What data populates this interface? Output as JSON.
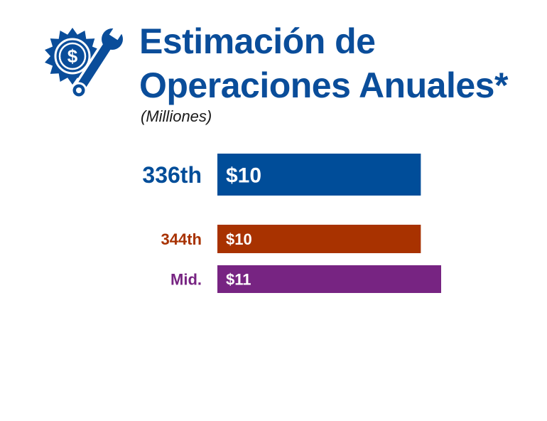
{
  "colors": {
    "title": "#0a4d9a",
    "icon": "#0a4d9a"
  },
  "icon": {
    "name": "dollar-gear-wrench-icon"
  },
  "header": {
    "title_line1": "Estimación de",
    "title_line2": "Operaciones Anuales*",
    "subtitle": "(Milliones)"
  },
  "chart_data": {
    "type": "bar",
    "orientation": "horizontal",
    "title": "Estimación de Operaciones Anuales*",
    "subtitle": "(Milliones)",
    "categories": [
      "336th",
      "344th",
      "Mid."
    ],
    "values": [
      10,
      10,
      11
    ],
    "value_labels": [
      "$10",
      "$10",
      "$11"
    ],
    "colors": [
      "#004d99",
      "#a83200",
      "#772482"
    ],
    "xlabel": "",
    "ylabel": "",
    "xlim": [
      0,
      11
    ],
    "grid": false,
    "legend": "none"
  }
}
